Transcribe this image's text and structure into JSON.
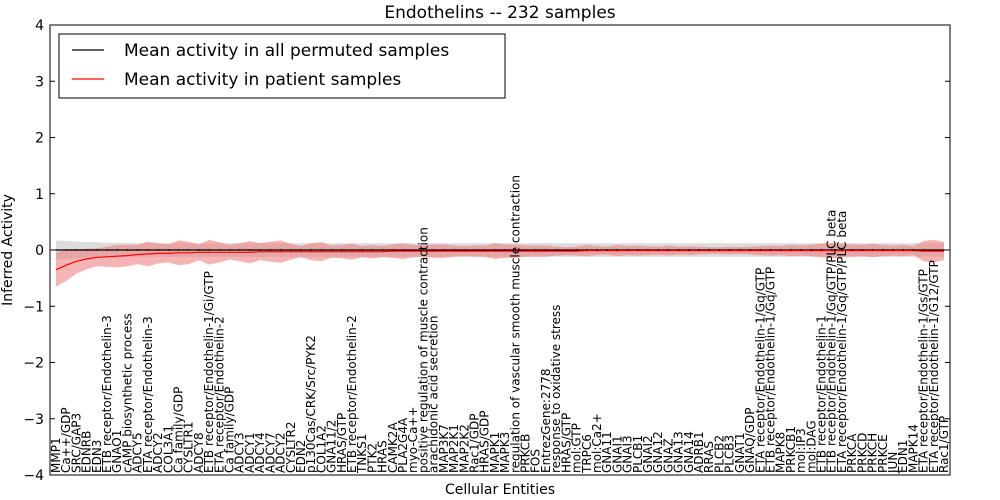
{
  "chart_data": {
    "type": "line",
    "title": "Endothelins -- 232 samples",
    "xlabel": "Cellular Entities",
    "ylabel": "Inferred Activity",
    "ylim": [
      -4,
      4
    ],
    "yticks": [
      -4,
      -3,
      -2,
      -1,
      0,
      1,
      2,
      3,
      4
    ],
    "ytick_labels": [
      "−4",
      "−3",
      "−2",
      "−1",
      "0",
      "1",
      "2",
      "3",
      "4"
    ],
    "grid": false,
    "legend_position": "top-left",
    "categories": [
      "MMP1",
      "Ca++/GDP",
      "SRC/GAP3",
      "EDNRB",
      "EDN3",
      "ETB receptor/Endothelin-3",
      "GNAO1",
      "cAMP biosynthetic process",
      "ADCY5",
      "ETA receptor/Endothelin-3",
      "ADCY2",
      "COL3A1",
      "Ca family/GDP",
      "CYSLTR1",
      "ADCY8",
      "ETB receptor/Endothelin-1/Gi/GTP",
      "ETA receptor/Endothelin-2",
      "Ca family/GDP",
      "ADCY3",
      "ADCY1",
      "ADCY4",
      "ADCY7",
      "ADCY2",
      "CYSLTR2",
      "EDN2",
      "p130Cas/CRK/Src/PYK2",
      "COL1A2",
      "GNA11/2",
      "HRAS/GTP",
      "ETB receptor/Endothelin-2",
      "TNKS1",
      "PTK2",
      "HRAS",
      "CAMK2A",
      "PLA2G4A",
      "myo-Ca++",
      "positive regulation of muscle contraction",
      "arachidonic acid secretion",
      "MAP3K7",
      "MAP2K1",
      "MAP2K2",
      "Rac1/GDP",
      "HRAS/GDP",
      "MAPK1",
      "MAPK3",
      "regulation of vascular smooth muscle contraction",
      "PRKCB",
      "FOS",
      "EntrezGene:2778",
      "response to oxidative stress",
      "HRAS/GTP",
      "mol:GTP",
      "TRPC6",
      "mol:Ca2+",
      "GNA11",
      "GNAI1",
      "GNAI3",
      "PLCB1",
      "GNAI2",
      "GNA12",
      "GNAZ",
      "GNA13",
      "GNA14",
      "ADRB1",
      "RRAS",
      "PLCB2",
      "PLCB3",
      "GNAT1",
      "GNAQ/GDP",
      "ETA receptor/Endothelin-1/Gq/GTP",
      "ETB receptor/Endothelin-1/Gq/GTP",
      "MAPK8",
      "PRKCB1",
      "mol:IP3",
      "mol:DAG",
      "ETB receptor/Endothelin-1",
      "ETB receptor/Endothelin-1/Gq/GTP/PLC beta",
      "ETA receptor/Endothelin-1/Gq/GTP/PLC beta",
      "PRKCA",
      "PRKCD",
      "PRKCH",
      "PRKCE",
      "JUN",
      "EDN1",
      "MAPK14",
      "ETA receptor/Endothelin-1/Gs/GTP",
      "ETA receptor/Endothelin-1/G12/GTP",
      "Rac1/GTP"
    ],
    "series": [
      {
        "name": "Mean activity in all permuted samples",
        "color": "#000000",
        "values": [
          0,
          0,
          0,
          0,
          0,
          0,
          0,
          0,
          0,
          0,
          0,
          0,
          0,
          0,
          0,
          0,
          0,
          0,
          0,
          0,
          0,
          0,
          0,
          0,
          0,
          0,
          0,
          0,
          0,
          0,
          0,
          0,
          0,
          0,
          0,
          0,
          0,
          0,
          0,
          0,
          0,
          0,
          0,
          0,
          0,
          0,
          0,
          0,
          0,
          0,
          0,
          0,
          0,
          0,
          0,
          0,
          0,
          0,
          0,
          0,
          0,
          0,
          0,
          0,
          0,
          0,
          0,
          0,
          0,
          0,
          0,
          0,
          0,
          0,
          0,
          0,
          0,
          0,
          0,
          0,
          0,
          0,
          0,
          0,
          0,
          0,
          0,
          0
        ],
        "band": [
          0.17,
          0.16,
          0.15,
          0.14,
          0.14,
          0.13,
          0.13,
          0.13,
          0.12,
          0.12,
          0.12,
          0.12,
          0.12,
          0.12,
          0.12,
          0.12,
          0.12,
          0.12,
          0.12,
          0.12,
          0.12,
          0.12,
          0.12,
          0.12,
          0.12,
          0.12,
          0.12,
          0.12,
          0.12,
          0.12,
          0.12,
          0.12,
          0.12,
          0.12,
          0.12,
          0.12,
          0.12,
          0.12,
          0.12,
          0.12,
          0.12,
          0.12,
          0.12,
          0.12,
          0.12,
          0.12,
          0.12,
          0.12,
          0.12,
          0.12,
          0.12,
          0.12,
          0.12,
          0.12,
          0.12,
          0.12,
          0.12,
          0.12,
          0.12,
          0.12,
          0.12,
          0.12,
          0.12,
          0.12,
          0.12,
          0.12,
          0.12,
          0.12,
          0.12,
          0.12,
          0.12,
          0.12,
          0.12,
          0.12,
          0.12,
          0.12,
          0.12,
          0.12,
          0.12,
          0.12,
          0.12,
          0.12,
          0.12,
          0.12,
          0.12,
          0.12,
          0.12,
          0.12
        ]
      },
      {
        "name": "Mean activity in patient samples",
        "color": "#ff0000",
        "values": [
          -0.35,
          -0.27,
          -0.2,
          -0.16,
          -0.13,
          -0.12,
          -0.11,
          -0.1,
          -0.08,
          -0.07,
          -0.06,
          -0.06,
          -0.05,
          -0.05,
          -0.04,
          -0.04,
          -0.04,
          -0.04,
          -0.04,
          -0.04,
          -0.03,
          -0.03,
          -0.03,
          -0.03,
          -0.03,
          -0.03,
          -0.03,
          -0.03,
          -0.03,
          -0.03,
          -0.03,
          -0.03,
          -0.03,
          -0.02,
          -0.02,
          -0.02,
          -0.02,
          -0.02,
          -0.02,
          -0.02,
          -0.02,
          -0.02,
          -0.02,
          -0.02,
          -0.02,
          -0.02,
          -0.02,
          -0.02,
          -0.02,
          -0.02,
          -0.02,
          -0.02,
          -0.01,
          -0.01,
          -0.01,
          -0.01,
          -0.01,
          -0.01,
          -0.01,
          -0.01,
          -0.01,
          -0.01,
          -0.01,
          -0.01,
          -0.01,
          -0.01,
          -0.01,
          -0.01,
          -0.01,
          -0.01,
          -0.01,
          -0.01,
          -0.01,
          -0.01,
          -0.01,
          -0.01,
          -0.01,
          -0.01,
          -0.01,
          -0.01,
          -0.01,
          -0.01,
          -0.01,
          -0.01,
          -0.01,
          -0.02,
          -0.02,
          -0.02
        ],
        "band": [
          0.3,
          0.28,
          0.22,
          0.18,
          0.16,
          0.18,
          0.2,
          0.19,
          0.17,
          0.22,
          0.18,
          0.16,
          0.22,
          0.2,
          0.14,
          0.22,
          0.18,
          0.13,
          0.16,
          0.2,
          0.15,
          0.18,
          0.2,
          0.14,
          0.1,
          0.15,
          0.17,
          0.11,
          0.12,
          0.14,
          0.1,
          0.12,
          0.1,
          0.12,
          0.14,
          0.11,
          0.1,
          0.12,
          0.12,
          0.1,
          0.09,
          0.1,
          0.1,
          0.14,
          0.12,
          0.12,
          0.1,
          0.1,
          0.1,
          0.08,
          0.07,
          0.08,
          0.1,
          0.08,
          0.07,
          0.1,
          0.08,
          0.09,
          0.08,
          0.07,
          0.09,
          0.07,
          0.08,
          0.07,
          0.06,
          0.06,
          0.07,
          0.06,
          0.07,
          0.08,
          0.09,
          0.08,
          0.1,
          0.09,
          0.1,
          0.12,
          0.14,
          0.12,
          0.11,
          0.1,
          0.12,
          0.1,
          0.09,
          0.1,
          0.08,
          0.18,
          0.2,
          0.16
        ]
      }
    ]
  }
}
